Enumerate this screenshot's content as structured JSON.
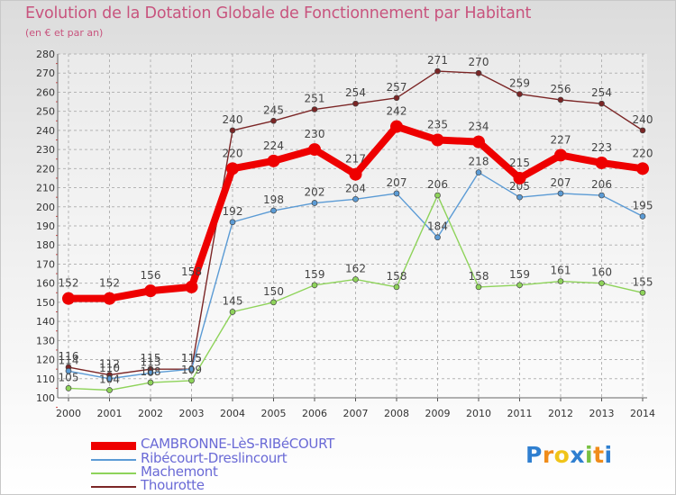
{
  "chart_data": {
    "type": "line",
    "title": "Evolution de la Dotation Globale de Fonctionnement par Habitant",
    "subtitle": "(en € et par an)",
    "x": [
      "2000",
      "2001",
      "2002",
      "2003",
      "2004",
      "2005",
      "2006",
      "2007",
      "2008",
      "2009",
      "2010",
      "2011",
      "2012",
      "2013",
      "2014"
    ],
    "y_ticks": [
      "100",
      "110",
      "120",
      "130",
      "140",
      "150",
      "160",
      "170",
      "180",
      "190",
      "200",
      "210",
      "220",
      "230",
      "240",
      "250",
      "260",
      "270",
      "280"
    ],
    "ylim": [
      100,
      280
    ],
    "grid": true,
    "legend_position": "bottom-left",
    "series": [
      {
        "name": "Thourotte",
        "color": "#7b2626",
        "values": [
          116,
          112,
          115,
          115,
          240,
          245,
          251,
          254,
          257,
          271,
          270,
          259,
          256,
          254,
          240
        ]
      },
      {
        "name": "Ribécourt-Dreslincourt",
        "color": "#5b9bd5",
        "values": [
          114,
          110,
          113,
          115,
          192,
          198,
          202,
          204,
          207,
          184,
          218,
          205,
          207,
          206,
          195
        ]
      },
      {
        "name": "Machemont",
        "color": "#8ed35a",
        "values": [
          105,
          104,
          108,
          109,
          145,
          150,
          159,
          162,
          158,
          206,
          158,
          159,
          161,
          160,
          155
        ]
      },
      {
        "name": "CAMBRONNE-LèS-RIBéCOURT",
        "color": "#ee0000",
        "values": [
          152,
          152,
          156,
          158,
          220,
          224,
          230,
          217,
          242,
          235,
          234,
          215,
          227,
          223,
          220
        ]
      }
    ]
  },
  "legend": [
    {
      "label": "CAMBRONNE-LèS-RIBéCOURT",
      "color": "#ee0000"
    },
    {
      "label": "Ribécourt-Dreslincourt",
      "color": "#5b9bd5"
    },
    {
      "label": "Machemont",
      "color": "#8ed35a"
    },
    {
      "label": "Thourotte",
      "color": "#7b2626"
    }
  ],
  "brand": {
    "name": "Proxiti",
    "letters": [
      "P",
      "r",
      "o",
      "x",
      "i",
      "t",
      "i"
    ],
    "colors": [
      "#2f7fd0",
      "#f08c1a",
      "#f0c419",
      "#2f7fd0",
      "#79c142",
      "#f08c1a",
      "#2f7fd0"
    ]
  }
}
